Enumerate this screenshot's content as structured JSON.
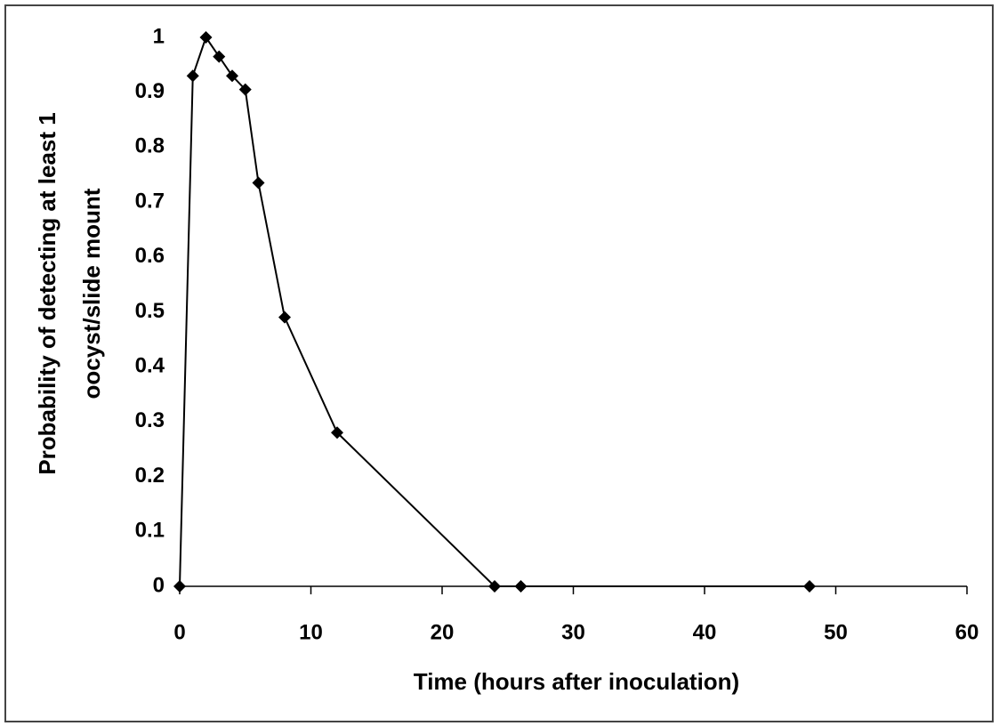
{
  "chart_data": {
    "type": "line",
    "x_label": "Time (hours after inoculation)",
    "y_label": [
      "Probability of detecting at least 1",
      "oocyst/slide mount"
    ],
    "x": [
      0,
      1,
      2,
      3,
      4,
      5,
      6,
      8,
      12,
      24,
      26,
      48
    ],
    "values": [
      0,
      0.93,
      1.0,
      0.965,
      0.93,
      0.905,
      0.735,
      0.49,
      0.28,
      0,
      0,
      0
    ],
    "color": "#000000",
    "marker": "diamond",
    "xlim": [
      0,
      60
    ],
    "xticks": [
      0,
      10,
      20,
      30,
      40,
      50,
      60
    ],
    "ylim": [
      0,
      1
    ],
    "yticks": [
      0,
      0.1,
      0.2,
      0.3,
      0.4,
      0.5,
      0.6,
      0.7,
      0.8,
      0.9,
      1
    ],
    "grid": false
  }
}
